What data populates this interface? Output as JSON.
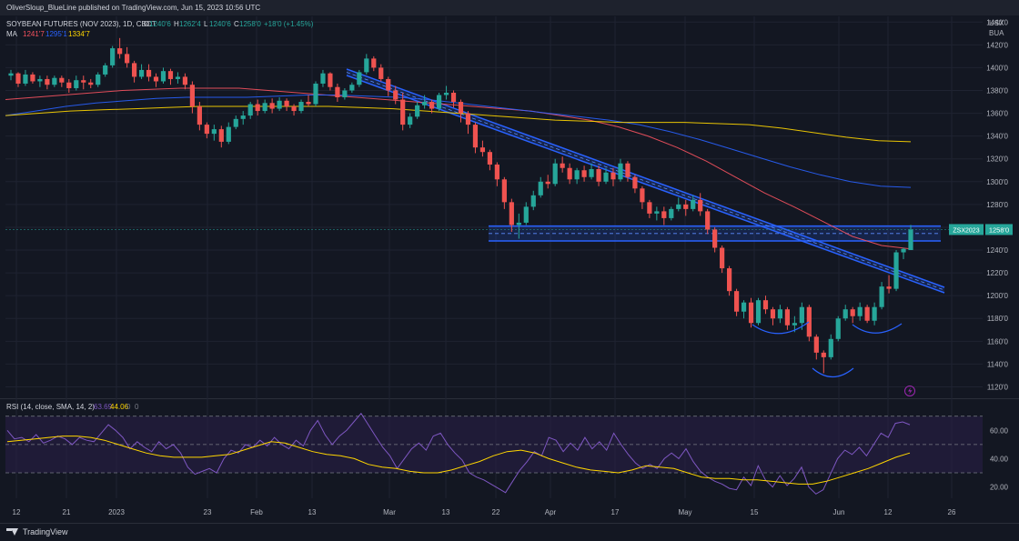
{
  "header": {
    "published": "OliverSloup_BlueLine published on TradingView.com, Jun 15, 2023 10:56 UTC"
  },
  "legend": {
    "symbol": "SOYBEAN FUTURES (NOV 2023), 1D, CBOT",
    "ohlc": [
      {
        "k": "O",
        "v": "1240'6"
      },
      {
        "k": "H",
        "v": "1262'4"
      },
      {
        "k": "L",
        "v": "1240'6"
      },
      {
        "k": "C",
        "v": "1258'0"
      }
    ],
    "change": "+18'0 (+1.45%)",
    "ma_label": "MA",
    "ma_values": [
      {
        "v": "1241'7",
        "color": "#f7525f"
      },
      {
        "v": "1295'1",
        "color": "#2962ff"
      },
      {
        "v": "1334'7",
        "color": "#ffd600"
      }
    ],
    "rsi_label": "RSI (14, close, SMA, 14, 2)",
    "rsi_values": [
      {
        "v": "63.69",
        "color": "#7e57c2"
      },
      {
        "v": "44.06",
        "color": "#ffd600"
      },
      {
        "v": "0",
        "color": "#787b86"
      },
      {
        "v": "0",
        "color": "#787b86"
      }
    ]
  },
  "axis": {
    "currency": "USX",
    "unit": "BUA",
    "price_ticks": [
      1440,
      1420,
      1400,
      1380,
      1360,
      1340,
      1320,
      1300,
      1280,
      1260,
      1240,
      1220,
      1200,
      1180,
      1160,
      1140,
      1120
    ],
    "price_tick_labels": [
      "1440'0",
      "1420'0",
      "1400'0",
      "1380'0",
      "1360'0",
      "1340'0",
      "1320'0",
      "1300'0",
      "1280'0",
      "1260'0",
      "1240'0",
      "1220'0",
      "1200'0",
      "1180'0",
      "1160'0",
      "1140'0",
      "1120'0"
    ],
    "rsi_ticks": [
      60,
      40,
      20
    ],
    "rsi_tick_labels": [
      "60.00",
      "40.00",
      "20.00"
    ],
    "time_labels": [
      "12",
      "21",
      "2023",
      "23",
      "Feb",
      "13",
      "Mar",
      "13",
      "22",
      "Apr",
      "17",
      "May",
      "15",
      "Jun",
      "12",
      "26"
    ],
    "symbol_tag": "ZSX2023",
    "last_price_tag": "1258'0"
  },
  "chart_data": {
    "type": "candlestick",
    "title": "SOYBEAN FUTURES (NOV 2023), 1D, CBOT",
    "y_range": [
      1110,
      1445
    ],
    "rsi_range": [
      12,
      75
    ],
    "candles_ohlc": [
      [
        1393,
        1398,
        1389,
        1395
      ],
      [
        1395,
        1396,
        1383,
        1386
      ],
      [
        1386,
        1398,
        1384,
        1394
      ],
      [
        1394,
        1396,
        1386,
        1388
      ],
      [
        1388,
        1393,
        1383,
        1390
      ],
      [
        1390,
        1393,
        1381,
        1385
      ],
      [
        1385,
        1393,
        1383,
        1391
      ],
      [
        1391,
        1393,
        1383,
        1387
      ],
      [
        1387,
        1390,
        1378,
        1382
      ],
      [
        1382,
        1393,
        1380,
        1389
      ],
      [
        1389,
        1393,
        1381,
        1387
      ],
      [
        1387,
        1390,
        1382,
        1385
      ],
      [
        1385,
        1396,
        1383,
        1394
      ],
      [
        1394,
        1404,
        1392,
        1402
      ],
      [
        1402,
        1419,
        1400,
        1417
      ],
      [
        1417,
        1426,
        1408,
        1412
      ],
      [
        1412,
        1418,
        1400,
        1404
      ],
      [
        1404,
        1406,
        1387,
        1392
      ],
      [
        1392,
        1403,
        1390,
        1398
      ],
      [
        1398,
        1403,
        1388,
        1392
      ],
      [
        1392,
        1395,
        1383,
        1388
      ],
      [
        1388,
        1400,
        1386,
        1397
      ],
      [
        1397,
        1399,
        1385,
        1390
      ],
      [
        1390,
        1396,
        1386,
        1392
      ],
      [
        1392,
        1395,
        1381,
        1385
      ],
      [
        1385,
        1388,
        1360,
        1366
      ],
      [
        1366,
        1370,
        1345,
        1350
      ],
      [
        1350,
        1352,
        1338,
        1342
      ],
      [
        1342,
        1350,
        1336,
        1346
      ],
      [
        1346,
        1349,
        1330,
        1335
      ],
      [
        1335,
        1352,
        1333,
        1348
      ],
      [
        1348,
        1358,
        1346,
        1355
      ],
      [
        1355,
        1362,
        1350,
        1358
      ],
      [
        1358,
        1370,
        1355,
        1368
      ],
      [
        1368,
        1372,
        1358,
        1362
      ],
      [
        1362,
        1372,
        1360,
        1369
      ],
      [
        1369,
        1373,
        1360,
        1364
      ],
      [
        1364,
        1374,
        1362,
        1371
      ],
      [
        1371,
        1373,
        1362,
        1366
      ],
      [
        1366,
        1368,
        1358,
        1362
      ],
      [
        1362,
        1372,
        1360,
        1370
      ],
      [
        1370,
        1376,
        1366,
        1368
      ],
      [
        1368,
        1388,
        1366,
        1386
      ],
      [
        1386,
        1398,
        1383,
        1395
      ],
      [
        1395,
        1396,
        1380,
        1383
      ],
      [
        1383,
        1386,
        1370,
        1374
      ],
      [
        1374,
        1382,
        1372,
        1380
      ],
      [
        1380,
        1387,
        1378,
        1385
      ],
      [
        1385,
        1398,
        1383,
        1396
      ],
      [
        1396,
        1412,
        1394,
        1408
      ],
      [
        1408,
        1410,
        1397,
        1400
      ],
      [
        1400,
        1403,
        1388,
        1390
      ],
      [
        1390,
        1392,
        1375,
        1380
      ],
      [
        1380,
        1384,
        1368,
        1372
      ],
      [
        1372,
        1378,
        1345,
        1350
      ],
      [
        1350,
        1360,
        1347,
        1357
      ],
      [
        1357,
        1370,
        1355,
        1367
      ],
      [
        1367,
        1376,
        1364,
        1370
      ],
      [
        1370,
        1372,
        1360,
        1364
      ],
      [
        1364,
        1378,
        1362,
        1376
      ],
      [
        1376,
        1384,
        1372,
        1378
      ],
      [
        1378,
        1380,
        1365,
        1370
      ],
      [
        1370,
        1372,
        1352,
        1360
      ],
      [
        1360,
        1362,
        1342,
        1350
      ],
      [
        1350,
        1352,
        1325,
        1330
      ],
      [
        1330,
        1336,
        1322,
        1326
      ],
      [
        1326,
        1328,
        1310,
        1315
      ],
      [
        1315,
        1317,
        1296,
        1302
      ],
      [
        1302,
        1304,
        1276,
        1282
      ],
      [
        1282,
        1285,
        1256,
        1262
      ],
      [
        1262,
        1272,
        1250,
        1264
      ],
      [
        1264,
        1282,
        1262,
        1278
      ],
      [
        1278,
        1292,
        1275,
        1288
      ],
      [
        1288,
        1304,
        1286,
        1300
      ],
      [
        1300,
        1306,
        1294,
        1298
      ],
      [
        1298,
        1320,
        1296,
        1316
      ],
      [
        1316,
        1322,
        1308,
        1312
      ],
      [
        1312,
        1316,
        1298,
        1302
      ],
      [
        1302,
        1312,
        1298,
        1310
      ],
      [
        1310,
        1314,
        1300,
        1304
      ],
      [
        1304,
        1316,
        1302,
        1311
      ],
      [
        1311,
        1314,
        1296,
        1300
      ],
      [
        1300,
        1312,
        1298,
        1308
      ],
      [
        1308,
        1312,
        1296,
        1302
      ],
      [
        1302,
        1320,
        1300,
        1316
      ],
      [
        1316,
        1318,
        1300,
        1304
      ],
      [
        1304,
        1306,
        1290,
        1294
      ],
      [
        1294,
        1296,
        1276,
        1282
      ],
      [
        1282,
        1284,
        1268,
        1272
      ],
      [
        1272,
        1278,
        1266,
        1274
      ],
      [
        1274,
        1278,
        1262,
        1268
      ],
      [
        1268,
        1278,
        1266,
        1276
      ],
      [
        1276,
        1286,
        1274,
        1280
      ],
      [
        1280,
        1284,
        1270,
        1276
      ],
      [
        1276,
        1288,
        1274,
        1284
      ],
      [
        1284,
        1290,
        1270,
        1274
      ],
      [
        1274,
        1276,
        1254,
        1258
      ],
      [
        1258,
        1260,
        1238,
        1242
      ],
      [
        1242,
        1244,
        1220,
        1224
      ],
      [
        1224,
        1226,
        1200,
        1204
      ],
      [
        1204,
        1206,
        1182,
        1186
      ],
      [
        1186,
        1196,
        1180,
        1194
      ],
      [
        1194,
        1198,
        1172,
        1176
      ],
      [
        1176,
        1198,
        1174,
        1196
      ],
      [
        1196,
        1200,
        1184,
        1188
      ],
      [
        1188,
        1190,
        1174,
        1180
      ],
      [
        1180,
        1192,
        1176,
        1188
      ],
      [
        1188,
        1190,
        1170,
        1174
      ],
      [
        1174,
        1182,
        1168,
        1176
      ],
      [
        1176,
        1194,
        1170,
        1190
      ],
      [
        1190,
        1192,
        1160,
        1164
      ],
      [
        1164,
        1166,
        1144,
        1150
      ],
      [
        1150,
        1152,
        1132,
        1146
      ],
      [
        1146,
        1166,
        1144,
        1162
      ],
      [
        1162,
        1182,
        1160,
        1180
      ],
      [
        1180,
        1192,
        1178,
        1188
      ],
      [
        1188,
        1190,
        1176,
        1182
      ],
      [
        1182,
        1194,
        1178,
        1190
      ],
      [
        1190,
        1192,
        1176,
        1178
      ],
      [
        1178,
        1194,
        1174,
        1190
      ],
      [
        1190,
        1212,
        1188,
        1208
      ],
      [
        1208,
        1218,
        1202,
        1206
      ],
      [
        1206,
        1240,
        1204,
        1238
      ],
      [
        1238,
        1242,
        1232,
        1241
      ],
      [
        1240,
        1262,
        1240,
        1258
      ]
    ],
    "moving_averages": [
      {
        "label": "1241'7",
        "color": "#f7525f",
        "values": [
          1372,
          1374,
          1376,
          1378,
          1380,
          1381,
          1382,
          1382,
          1382,
          1380,
          1378,
          1376,
          1374,
          1372,
          1370,
          1368,
          1366,
          1364,
          1362,
          1358,
          1354,
          1348,
          1340,
          1330,
          1318,
          1304,
          1290,
          1278,
          1265,
          1252,
          1244,
          1241
        ]
      },
      {
        "label": "1295'1",
        "color": "#2962ff",
        "values": [
          1358,
          1362,
          1366,
          1369,
          1371,
          1373,
          1374,
          1374,
          1374,
          1375,
          1376,
          1376,
          1375,
          1374,
          1372,
          1369,
          1366,
          1363,
          1360,
          1357,
          1354,
          1350,
          1344,
          1337,
          1329,
          1321,
          1313,
          1306,
          1300,
          1296,
          1295
        ]
      },
      {
        "label": "1334'7",
        "color": "#ffd600",
        "values": [
          1358,
          1360,
          1362,
          1363,
          1364,
          1365,
          1366,
          1366,
          1366,
          1366,
          1366,
          1365,
          1364,
          1362,
          1360,
          1358,
          1356,
          1354,
          1353,
          1352,
          1352,
          1352,
          1351,
          1350,
          1347,
          1343,
          1339,
          1336,
          1335
        ]
      }
    ],
    "rsi_values": [
      60,
      54,
      55,
      52,
      57,
      51,
      53,
      56,
      54,
      50,
      55,
      53,
      52,
      58,
      64,
      60,
      55,
      47,
      52,
      48,
      45,
      52,
      47,
      50,
      44,
      34,
      29,
      31,
      33,
      30,
      40,
      46,
      44,
      50,
      48,
      53,
      49,
      55,
      50,
      47,
      53,
      49,
      60,
      67,
      57,
      50,
      56,
      60,
      66,
      72,
      64,
      56,
      48,
      42,
      33,
      40,
      47,
      51,
      46,
      56,
      58,
      50,
      44,
      39,
      30,
      27,
      25,
      22,
      19,
      16,
      24,
      32,
      38,
      45,
      42,
      55,
      53,
      45,
      51,
      46,
      55,
      47,
      52,
      46,
      58,
      50,
      43,
      37,
      33,
      36,
      33,
      40,
      44,
      40,
      47,
      38,
      31,
      27,
      24,
      22,
      19,
      18,
      27,
      21,
      35,
      25,
      20,
      28,
      21,
      26,
      34,
      20,
      15,
      18,
      29,
      40,
      46,
      43,
      48,
      42,
      50,
      58,
      55,
      65,
      66,
      64
    ],
    "rsi_ma_values": [
      52,
      53,
      54,
      55,
      56,
      56,
      55,
      53,
      50,
      47,
      44,
      42,
      41,
      41,
      41,
      42,
      43,
      46,
      49,
      52,
      51,
      48,
      45,
      43,
      42,
      40,
      36,
      34,
      33,
      31,
      30,
      30,
      32,
      35,
      38,
      42,
      45,
      46,
      44,
      40,
      37,
      34,
      32,
      31,
      30,
      32,
      35,
      34,
      33,
      30,
      27,
      26,
      26,
      25,
      25,
      24,
      23,
      22,
      22,
      24,
      27,
      30,
      33,
      37,
      41,
      44
    ],
    "rsi_levels": [
      70,
      50,
      30
    ]
  },
  "drawings": {
    "downtrend_channel": "upper and lower descending trend lines",
    "support_zone": "horizontal blue zone",
    "pattern": "inverse head and shoulders arcs"
  }
}
